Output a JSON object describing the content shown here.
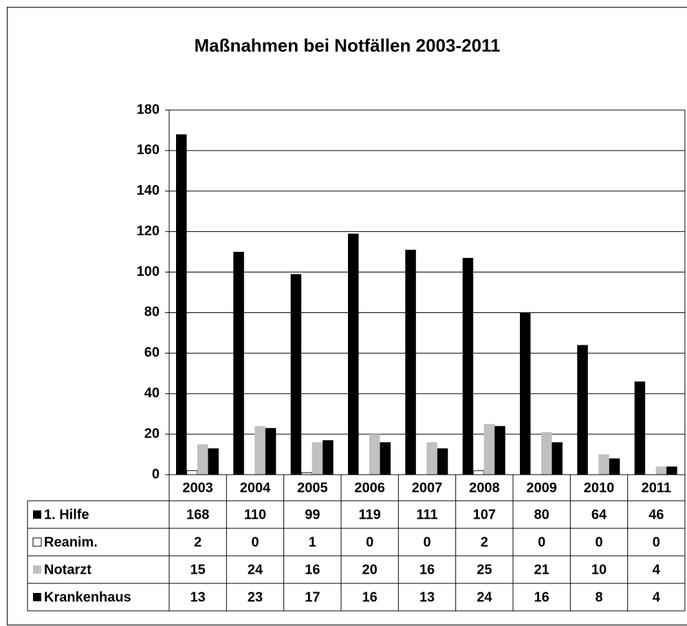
{
  "chart_data": {
    "type": "bar",
    "title": "Maßnahmen bei Notfällen 2003-2011",
    "categories": [
      "2003",
      "2004",
      "2005",
      "2006",
      "2007",
      "2008",
      "2009",
      "2010",
      "2011"
    ],
    "series": [
      {
        "name": "1. Hilfe",
        "color": "#000000",
        "values": [
          168,
          110,
          99,
          119,
          111,
          107,
          80,
          64,
          46
        ]
      },
      {
        "name": "Reanim.",
        "color": "#ffffff",
        "values": [
          2,
          0,
          1,
          0,
          0,
          2,
          0,
          0,
          0
        ]
      },
      {
        "name": "Notarzt",
        "color": "#c0c0c0",
        "values": [
          15,
          24,
          16,
          20,
          16,
          25,
          21,
          10,
          4
        ]
      },
      {
        "name": "Krankenhaus",
        "color": "#000000",
        "values": [
          13,
          23,
          17,
          16,
          13,
          24,
          16,
          8,
          4
        ]
      }
    ],
    "ylim": [
      0,
      180
    ],
    "yticks": [
      0,
      20,
      40,
      60,
      80,
      100,
      120,
      140,
      160,
      180
    ],
    "grid": true
  }
}
